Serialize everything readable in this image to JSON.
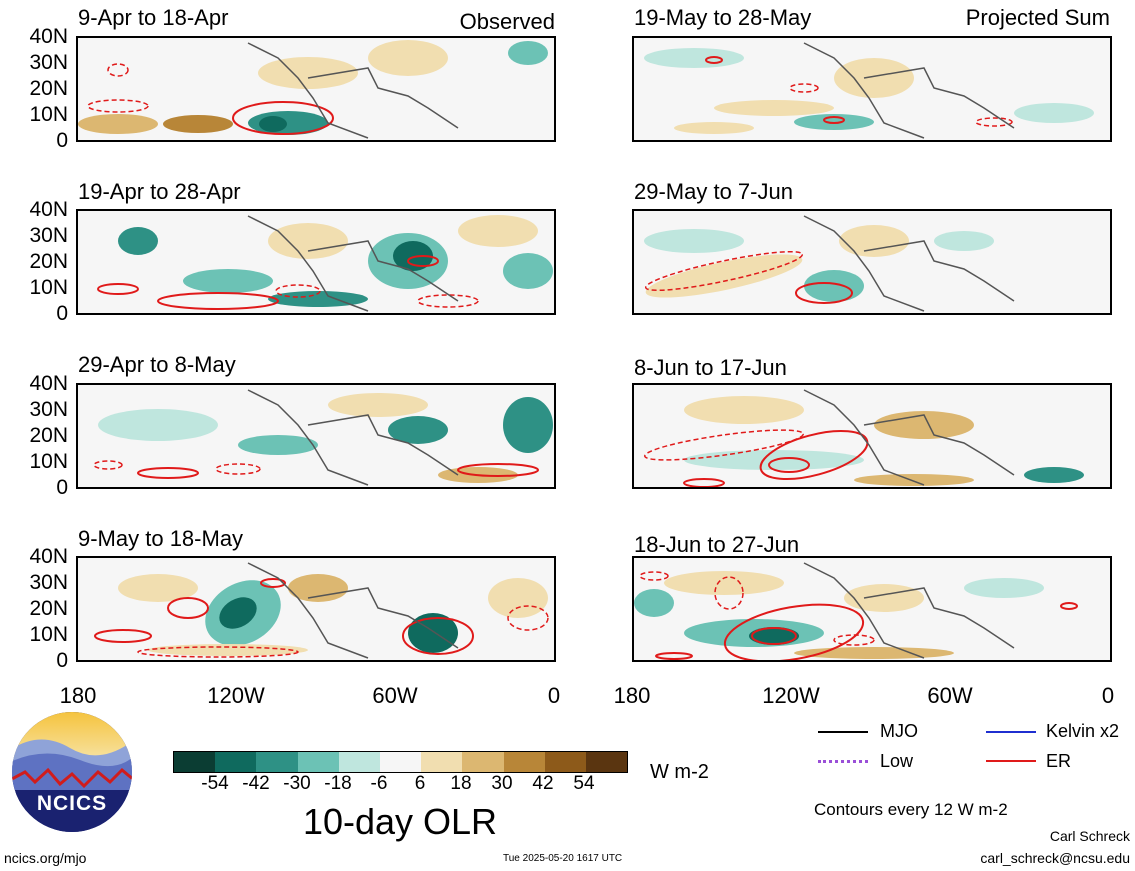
{
  "panels": [
    {
      "title": "9-Apr to 18-Apr",
      "tag": "Observed"
    },
    {
      "title": "19-Apr to 28-Apr",
      "tag": ""
    },
    {
      "title": "29-Apr to 8-May",
      "tag": ""
    },
    {
      "title": "9-May to 18-May",
      "tag": ""
    },
    {
      "title": "19-May to 28-May",
      "tag": "Projected Sum"
    },
    {
      "title": "29-May to 7-Jun",
      "tag": ""
    },
    {
      "title": "8-Jun to 17-Jun",
      "tag": ""
    },
    {
      "title": "18-Jun to 27-Jun",
      "tag": ""
    }
  ],
  "lat_labels": [
    "40N",
    "30N",
    "20N",
    "10N",
    "0"
  ],
  "lon_labels": [
    "180",
    "120W",
    "60W",
    "0"
  ],
  "colorbar": {
    "labels": [
      "-54",
      "-42",
      "-30",
      "-18",
      "-6",
      "6",
      "18",
      "30",
      "42",
      "54"
    ],
    "colors": [
      "#0b3d33",
      "#0f6a5e",
      "#2e9185",
      "#6cc2b5",
      "#bfe6de",
      "#f6f6f6",
      "#f1deb0",
      "#dcb771",
      "#b88638",
      "#8d5a1a",
      "#5a3510"
    ],
    "unit": "W m-2",
    "title": "10-day OLR"
  },
  "legend": {
    "mjo": "MJO",
    "kelvin": "Kelvin x2",
    "low": "Low",
    "er": "ER",
    "colors": {
      "mjo": "#000000",
      "kelvin": "#1f2fd0",
      "low": "#9a4fd8",
      "er": "#e01a1a"
    },
    "contours_note": "Contours every 12 W m-2"
  },
  "logo": {
    "text": "NCICS"
  },
  "footer": {
    "left": "ncics.org/mjo",
    "timestamp": "Tue 2025-05-20 1617 UTC",
    "author": "Carl Schreck",
    "email": "carl_schreck@ncsu.edu"
  }
}
